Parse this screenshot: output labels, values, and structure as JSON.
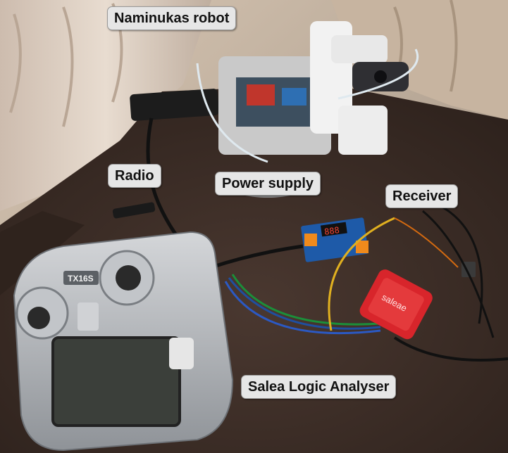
{
  "labels": {
    "robot": "Naminukas robot",
    "radio": "Radio",
    "power_supply": "Power supply",
    "receiver": "Receiver",
    "logic_analyser": "Salea Logic Analyser"
  },
  "device_text": {
    "radio_model": "TX16S",
    "analyser_brand": "saleae",
    "display_reading": "888"
  },
  "colors": {
    "table": "#3b2b24",
    "curtain": "#d9c9bb",
    "analyser_red": "#d8252b",
    "radio_silver": "#b9bcc0",
    "board_blue": "#1e5aa8",
    "callout_bg": "#e6e6e6"
  }
}
